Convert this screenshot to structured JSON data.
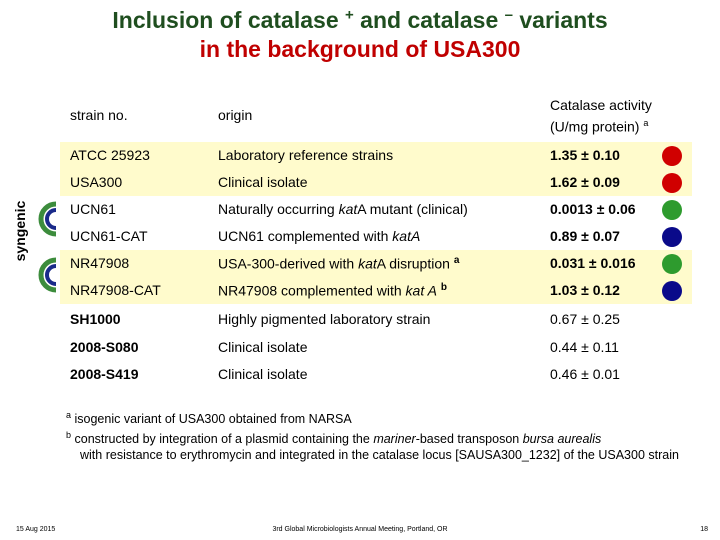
{
  "title": {
    "line1_a": "Inclusion of catalase",
    "sup1": "+",
    "line1_b": "and catalase",
    "sup2": "–",
    "line1_c": "variants",
    "line2": "in the background of USA300"
  },
  "side_label": "syngenic",
  "table": {
    "headers": {
      "strain": "strain no.",
      "origin": "origin",
      "activity_line1": "Catalase activity",
      "activity_line2": "(U/mg protein)",
      "activity_sup": "a"
    },
    "rows": [
      {
        "strain": "ATCC 25923",
        "origin": "Laboratory reference strains",
        "activity": "1.35 ± 0.10",
        "dot": "#d00000",
        "highlight": "yellow"
      },
      {
        "strain": "USA300",
        "origin": "Clinical isolate",
        "activity": "1.62 ± 0.09",
        "dot": "#d00000",
        "highlight": "yellow"
      },
      {
        "strain": "UCN61",
        "origin": "Naturally occurring katA mutant (clinical)",
        "activity": "0.0013 ± 0.06",
        "dot": "#2e9b2e",
        "highlight": "white"
      },
      {
        "strain": "UCN61-CAT",
        "origin": "UCN61 complemented with katA",
        "activity": "0.89 ± 0.07",
        "dot": "#0a0a8a",
        "highlight": "white"
      },
      {
        "strain": "NR47908",
        "origin": "USA-300-derived with katA disruption",
        "origin_sup": "a",
        "activity": "0.031 ± 0.016",
        "dot": "#2e9b2e",
        "highlight": "yellow"
      },
      {
        "strain": "NR47908-CAT",
        "origin": "NR47908 complemented with kat A",
        "origin_sup": "b",
        "activity": "1.03 ± 0.12",
        "dot": "#0a0a8a",
        "highlight": "yellow"
      },
      {
        "strain": "SH1000",
        "origin": "Highly pigmented laboratory strain",
        "activity": "0.67 ± 0.25",
        "dot": "",
        "highlight": "none"
      },
      {
        "strain": "2008-S080",
        "origin": "Clinical isolate",
        "activity": "0.44 ± 0.11",
        "dot": "",
        "highlight": "none"
      },
      {
        "strain": "2008-S419",
        "origin": "Clinical isolate",
        "activity": "0.46 ± 0.01",
        "dot": "",
        "highlight": "none"
      }
    ]
  },
  "notes": {
    "a_sup": "a",
    "a_text": "isogenic variant of USA300 obtained from NARSA",
    "b_sup": "b",
    "b_text_1": "constructed by integration of a plasmid containing the",
    "b_italic": "mariner",
    "b_text_2": "-based transposon",
    "b_italic2": "bursa aurealis",
    "b_text_3": "with resistance to erythromycin and integrated in the catalase locus [SAUSA300_1232] of the USA300 strain"
  },
  "footer": {
    "date": "15 Aug 2015",
    "meeting": "3rd Global Microbiologists Annual Meeting, Portland, OR",
    "page": "18"
  },
  "colors": {
    "title_green": "#1f4e1f",
    "title_red": "#c00000",
    "bracket_green": "#3c8c3c",
    "bracket_blue": "#1a2a8a",
    "highlight_yellow": "#fffbcc"
  }
}
